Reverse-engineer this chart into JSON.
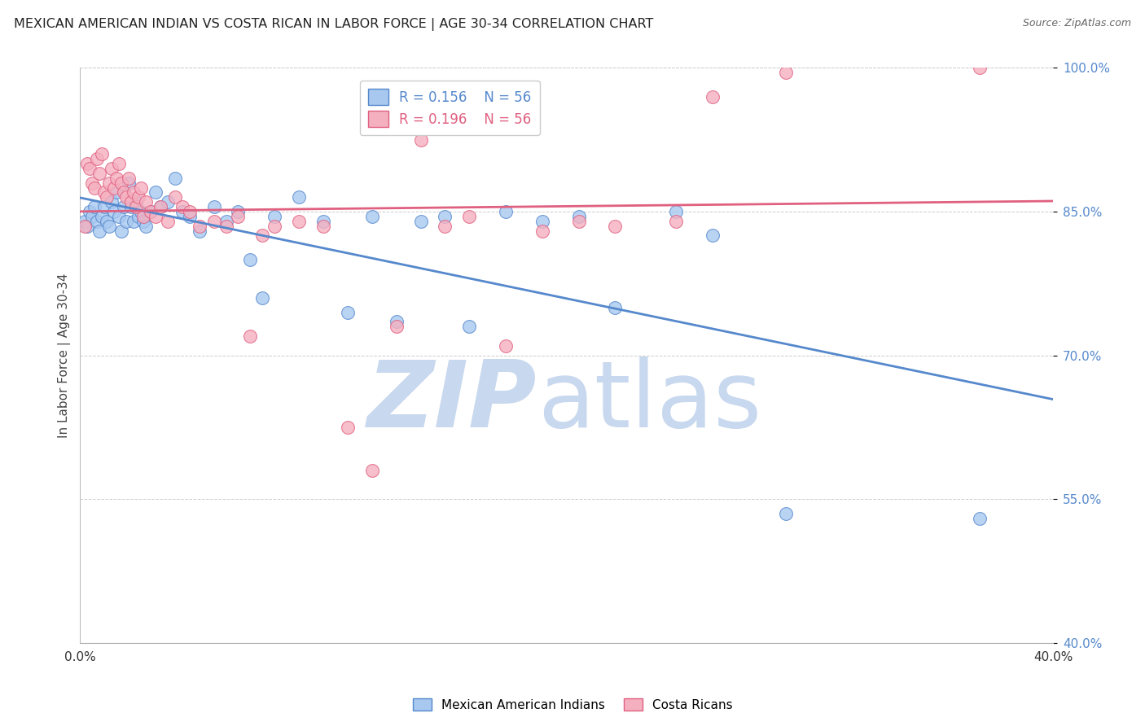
{
  "title": "MEXICAN AMERICAN INDIAN VS COSTA RICAN IN LABOR FORCE | AGE 30-34 CORRELATION CHART",
  "source": "Source: ZipAtlas.com",
  "ylabel": "In Labor Force | Age 30-34",
  "R_blue": 0.156,
  "N_blue": 56,
  "R_pink": 0.196,
  "N_pink": 56,
  "legend_blue": "Mexican American Indians",
  "legend_pink": "Costa Ricans",
  "blue_color": "#A8C8F0",
  "pink_color": "#F5B0C0",
  "blue_line_color": "#5588CC",
  "pink_line_color": "#E06080",
  "blue_scatter": [
    [
      0.2,
      84.0
    ],
    [
      0.3,
      83.5
    ],
    [
      0.4,
      85.0
    ],
    [
      0.5,
      84.5
    ],
    [
      0.6,
      85.5
    ],
    [
      0.7,
      84.0
    ],
    [
      0.8,
      83.0
    ],
    [
      0.9,
      84.5
    ],
    [
      1.0,
      85.5
    ],
    [
      1.1,
      84.0
    ],
    [
      1.2,
      83.5
    ],
    [
      1.3,
      86.0
    ],
    [
      1.4,
      85.0
    ],
    [
      1.5,
      87.0
    ],
    [
      1.6,
      84.5
    ],
    [
      1.7,
      83.0
    ],
    [
      1.8,
      85.5
    ],
    [
      1.9,
      84.0
    ],
    [
      2.0,
      88.0
    ],
    [
      2.1,
      85.5
    ],
    [
      2.2,
      84.0
    ],
    [
      2.3,
      86.0
    ],
    [
      2.4,
      84.5
    ],
    [
      2.5,
      85.0
    ],
    [
      2.6,
      84.0
    ],
    [
      2.7,
      83.5
    ],
    [
      2.9,
      85.0
    ],
    [
      3.1,
      87.0
    ],
    [
      3.3,
      85.5
    ],
    [
      3.6,
      86.0
    ],
    [
      3.9,
      88.5
    ],
    [
      4.2,
      85.0
    ],
    [
      4.5,
      84.5
    ],
    [
      4.9,
      83.0
    ],
    [
      5.5,
      85.5
    ],
    [
      6.0,
      84.0
    ],
    [
      6.5,
      85.0
    ],
    [
      7.0,
      80.0
    ],
    [
      7.5,
      76.0
    ],
    [
      8.0,
      84.5
    ],
    [
      9.0,
      86.5
    ],
    [
      10.0,
      84.0
    ],
    [
      11.0,
      74.5
    ],
    [
      12.0,
      84.5
    ],
    [
      13.0,
      73.5
    ],
    [
      14.0,
      84.0
    ],
    [
      15.0,
      84.5
    ],
    [
      16.0,
      73.0
    ],
    [
      17.5,
      85.0
    ],
    [
      19.0,
      84.0
    ],
    [
      20.5,
      84.5
    ],
    [
      22.0,
      75.0
    ],
    [
      24.5,
      85.0
    ],
    [
      26.0,
      82.5
    ],
    [
      29.0,
      53.5
    ],
    [
      37.0,
      53.0
    ]
  ],
  "pink_scatter": [
    [
      0.2,
      83.5
    ],
    [
      0.3,
      90.0
    ],
    [
      0.4,
      89.5
    ],
    [
      0.5,
      88.0
    ],
    [
      0.6,
      87.5
    ],
    [
      0.7,
      90.5
    ],
    [
      0.8,
      89.0
    ],
    [
      0.9,
      91.0
    ],
    [
      1.0,
      87.0
    ],
    [
      1.1,
      86.5
    ],
    [
      1.2,
      88.0
    ],
    [
      1.3,
      89.5
    ],
    [
      1.4,
      87.5
    ],
    [
      1.5,
      88.5
    ],
    [
      1.6,
      90.0
    ],
    [
      1.7,
      88.0
    ],
    [
      1.8,
      87.0
    ],
    [
      1.9,
      86.5
    ],
    [
      2.0,
      88.5
    ],
    [
      2.1,
      86.0
    ],
    [
      2.2,
      87.0
    ],
    [
      2.3,
      85.5
    ],
    [
      2.4,
      86.5
    ],
    [
      2.5,
      87.5
    ],
    [
      2.6,
      84.5
    ],
    [
      2.7,
      86.0
    ],
    [
      2.9,
      85.0
    ],
    [
      3.1,
      84.5
    ],
    [
      3.3,
      85.5
    ],
    [
      3.6,
      84.0
    ],
    [
      3.9,
      86.5
    ],
    [
      4.2,
      85.5
    ],
    [
      4.5,
      85.0
    ],
    [
      4.9,
      83.5
    ],
    [
      5.5,
      84.0
    ],
    [
      6.0,
      83.5
    ],
    [
      6.5,
      84.5
    ],
    [
      7.0,
      72.0
    ],
    [
      7.5,
      82.5
    ],
    [
      8.0,
      83.5
    ],
    [
      9.0,
      84.0
    ],
    [
      10.0,
      83.5
    ],
    [
      11.0,
      62.5
    ],
    [
      12.0,
      58.0
    ],
    [
      13.0,
      73.0
    ],
    [
      14.0,
      92.5
    ],
    [
      15.0,
      83.5
    ],
    [
      16.0,
      84.5
    ],
    [
      17.5,
      71.0
    ],
    [
      19.0,
      83.0
    ],
    [
      20.5,
      84.0
    ],
    [
      22.0,
      83.5
    ],
    [
      24.5,
      84.0
    ],
    [
      26.0,
      97.0
    ],
    [
      29.0,
      99.5
    ],
    [
      37.0,
      100.0
    ]
  ],
  "xmin": 0.0,
  "xmax": 40.0,
  "ymin": 40.0,
  "ymax": 100.0,
  "ytick_positions": [
    40.0,
    55.0,
    70.0,
    85.0,
    100.0
  ],
  "ytick_labels": [
    "40.0%",
    "55.0%",
    "70.0%",
    "85.0%",
    "100.0%"
  ],
  "xtick_left_label": "0.0%",
  "xtick_right_label": "40.0%",
  "grid_color": "#CCCCCC",
  "watermark_zip": "ZIP",
  "watermark_atlas": "atlas",
  "watermark_color_zip": "#C8D8EE",
  "watermark_color_atlas": "#C8D8EE"
}
